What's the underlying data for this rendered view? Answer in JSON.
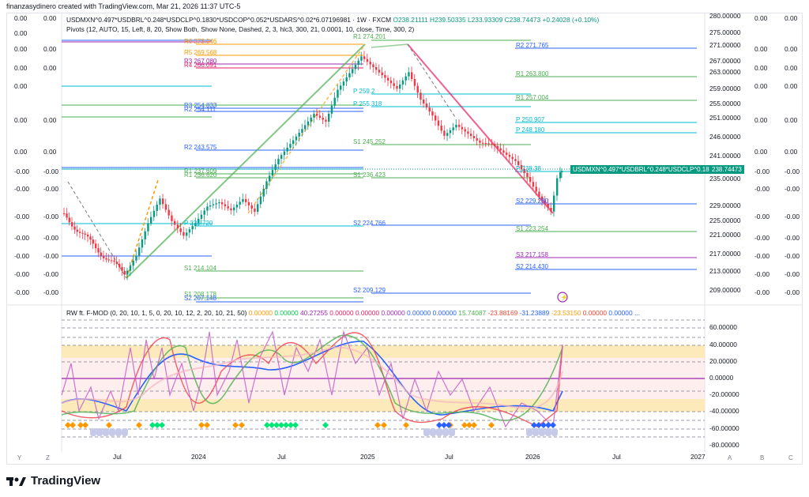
{
  "header": {
    "title": "finanzasydinero created with TradingView.com, Mar 21, 2026 11:37 UTC-5"
  },
  "main_legend": {
    "symbol": "USDMXN^0.497*USDBRL^0.248*USDCLP^0.1830*USDCOP^0.052*USDARS^0.02*6.07196981 · 1W · FXCM",
    "ohlc": "O238.21111 H239.50335 L233.93309 C238.74473 +0.24028 (+0.10%)",
    "pivots": "Pivots (12, AUTO, 15, Left, 8, 20, Show Both, Show None, Dashed, 2, 3, hlc3, 300, 21, 0.0001, 10, close, Time, 300, 2)"
  },
  "price_tag": {
    "label": "USDMXN^0.497*USDBRL^0.248*USDCLP^0.18...",
    "value": "238.74473"
  },
  "right_axis": [
    "280.00000",
    "275.00000",
    "271.00000",
    "267.00000",
    "263.00000",
    "259.00000",
    "255.00000",
    "251.00000",
    "246.00000",
    "241.00000",
    "235.00000",
    "229.00000",
    "225.00000",
    "221.00000",
    "217.00000",
    "213.00000",
    "209.00000"
  ],
  "osc_axis": [
    "60.00000",
    "40.00000",
    "20.00000",
    "0.00000",
    "-20.00000",
    "-40.00000",
    "-60.00000",
    "-80.00000"
  ],
  "left_axis": [
    "0.00",
    "0.00",
    "0.00",
    "0.00",
    "0.00",
    "0.00",
    "-0.00",
    "-0.00",
    "-0.00",
    "-0.00",
    "-0.00",
    "-0.00",
    "-0.00",
    "-0.00",
    "-0.00",
    "-0.00"
  ],
  "far_right_axis": [
    "0.00",
    "0.00",
    "0.00",
    "0.00",
    "0.00",
    "0.00",
    "-0.00",
    "-0.00",
    "-0.00",
    "-0.00",
    "-0.00",
    "-0.00",
    "-0.00",
    "-0.00",
    "-0.00"
  ],
  "osc_legend": {
    "name": "RW ft. F-MOD (0, 20, 10, 1, 5, 0, 20, 10, 12, 2, 20, 10, 21, 50)",
    "values": [
      "0.00000",
      "0.00000",
      "40.27255",
      "0.00000",
      "0.00000",
      "0.00000",
      "0.00000",
      "0.00000",
      "15.74087",
      "-23.88169",
      "-31.23889",
      "-23.53150",
      "0.00000",
      "0.00000",
      "..."
    ],
    "colors": [
      "#ff9800",
      "#00c853",
      "#9c27b0",
      "#e91e63",
      "#e91e63",
      "#9c27b0",
      "#2962ff",
      "#2962ff",
      "#4caf50",
      "#f44336",
      "#2962ff",
      "#ff9800",
      "#f44336",
      "#2962ff",
      "#2962ff"
    ]
  },
  "x_axis": [
    "Jul",
    "2024",
    "Jul",
    "2025",
    "Jul",
    "2026",
    "Jul",
    "2027"
  ],
  "pivot_labels": [
    {
      "t": "R6",
      "v": "273.946",
      "c": "#ff9800"
    },
    {
      "t": "R5",
      "v": "269.568",
      "c": "#ff9800"
    },
    {
      "t": "R3",
      "v": "267.080",
      "c": "#9c27b0"
    },
    {
      "t": "R4",
      "v": "266.091",
      "c": "#e91e63"
    },
    {
      "t": "R3",
      "v": "254.833",
      "c": "#2962ff"
    },
    {
      "t": "R2",
      "v": "254.111",
      "c": "#2962ff"
    },
    {
      "t": "R2",
      "v": "243.575",
      "c": "#2962ff"
    },
    {
      "t": "R1",
      "v": "237.609",
      "c": "#4caf50"
    },
    {
      "t": "R1",
      "v": "236.620",
      "c": "#4caf50"
    },
    {
      "t": "P",
      "v": "225.720",
      "c": "#00bcd4"
    },
    {
      "t": "S1",
      "v": "214.104",
      "c": "#4caf50"
    },
    {
      "t": "S1",
      "v": "208.178",
      "c": "#4caf50"
    },
    {
      "t": "S2",
      "v": "207.148",
      "c": "#2962ff"
    },
    {
      "t": "R1",
      "v": "274.201",
      "c": "#4caf50"
    },
    {
      "t": "P",
      "v": "259.2",
      "c": "#00bcd4"
    },
    {
      "t": "P",
      "v": "255.318",
      "c": "#00bcd4"
    },
    {
      "t": "S1",
      "v": "245.252",
      "c": "#4caf50"
    },
    {
      "t": "S1",
      "v": "236.423",
      "c": "#4caf50"
    },
    {
      "t": "S2",
      "v": "224.766",
      "c": "#2962ff"
    },
    {
      "t": "S2",
      "v": "209.129",
      "c": "#2962ff"
    },
    {
      "t": "R2",
      "v": "271.765",
      "c": "#2962ff"
    },
    {
      "t": "R1",
      "v": "263.800",
      "c": "#4caf50"
    },
    {
      "t": "R1",
      "v": "257.004",
      "c": "#4caf50"
    },
    {
      "t": "P",
      "v": "250.907",
      "c": "#00bcd4"
    },
    {
      "t": "P",
      "v": "248.180",
      "c": "#00bcd4"
    },
    {
      "t": "P",
      "v": "238.38",
      "c": "#00bcd4"
    },
    {
      "t": "S2",
      "v": "229.280",
      "c": "#2962ff"
    },
    {
      "t": "S1",
      "v": "223.254",
      "c": "#4caf50"
    },
    {
      "t": "S3",
      "v": "217.158",
      "c": "#9c27b0"
    },
    {
      "t": "S2",
      "v": "214.430",
      "c": "#2962ff"
    }
  ],
  "scale_buttons": {
    "y": "Y",
    "z": "Z",
    "a": "A",
    "b": "B",
    "c": "C"
  },
  "brand": "TradingView",
  "colors": {
    "up": "#089981",
    "down": "#f23645",
    "grid": "#f0f3fa"
  }
}
